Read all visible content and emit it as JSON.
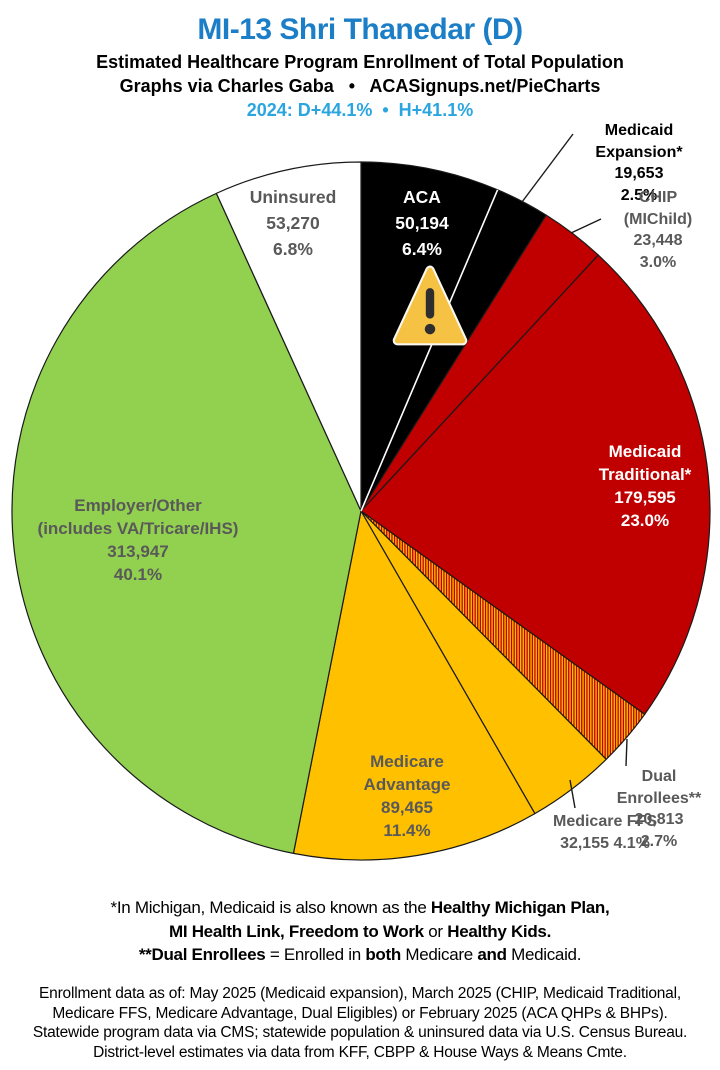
{
  "header": {
    "title": "MI-13 Shri Thanedar (D)",
    "title_color": "#1b7ec6",
    "subtitle": "Estimated Healthcare Program Enrollment of Total Population",
    "credit": "Graphs via Charles Gaba   •   ACASignups.net/PieCharts",
    "partisan": "2024: D+44.1%  •  H+41.1%",
    "partisan_color": "#2aa5e0"
  },
  "chart_data": {
    "type": "pie",
    "title": "Estimated Healthcare Program Enrollment of Total Population",
    "start": "12-oclock",
    "direction": "clockwise",
    "hatch_colors": [
      "#c00000",
      "#ffc000"
    ],
    "outline_color": "#1a1a1a",
    "label_gray": "#595959",
    "segments": [
      {
        "label": "ACA",
        "value": "50,194",
        "value_num": 50194,
        "pct": "6.4%",
        "share": 6.4,
        "color": "#000000",
        "text_color": "#ffffff",
        "divider_after": "#ffffff"
      },
      {
        "label": "Medicaid Expansion*",
        "value": "19,653",
        "value_num": 19653,
        "pct": "2.5%",
        "share": 2.5,
        "color": "#000000",
        "text_color": "#000000",
        "callout": true
      },
      {
        "label": "CHIP (MIChild)",
        "value": "23,448",
        "value_num": 23448,
        "pct": "3.0%",
        "share": 3.0,
        "color": "#c00000",
        "text_color": "#595959",
        "callout": true
      },
      {
        "label": "Medicaid\nTraditional*",
        "value": "179,595",
        "value_num": 179595,
        "pct": "23.0%",
        "share": 23.0,
        "color": "#c00000",
        "text_color": "#ffffff"
      },
      {
        "label": "Dual Enrollees**",
        "value": "20,813",
        "value_num": 20813,
        "pct": "2.7%",
        "share": 2.7,
        "color": "hatch",
        "text_color": "#595959",
        "callout": true
      },
      {
        "label": "Medicare FFS",
        "value": "32,155",
        "value_num": 32155,
        "pct": "4.1%",
        "share": 4.1,
        "color": "#ffc000",
        "text_color": "#595959",
        "callout": true
      },
      {
        "label": "Medicare\nAdvantage",
        "value": "89,465",
        "value_num": 89465,
        "pct": "11.4%",
        "share": 11.4,
        "color": "#ffc000",
        "text_color": "#595959"
      },
      {
        "label": "Employer/Other\n(includes VA/Tricare/IHS)",
        "value": "313,947",
        "value_num": 313947,
        "pct": "40.1%",
        "share": 40.1,
        "color": "#92d050",
        "text_color": "#595959"
      },
      {
        "label": "Uninsured",
        "value": "53,270",
        "value_num": 53270,
        "pct": "6.8%",
        "share": 6.8,
        "color": "#ffffff",
        "text_color": "#595959"
      }
    ]
  },
  "warning_icon": {
    "name": "warning-icon",
    "triangle_color": "#f6c243",
    "border_color": "#fbf8ef",
    "glyph_color": "#2e2e2e"
  },
  "footnote1": {
    "lines": [
      [
        {
          "t": "*In Michigan, Medicaid is also known as the ",
          "b": false
        },
        {
          "t": "Healthy Michigan Plan,",
          "b": true
        }
      ],
      [
        {
          "t": "MI Health Link, Freedom to Work",
          "b": true
        },
        {
          "t": " or ",
          "b": false
        },
        {
          "t": "Healthy Kids.",
          "b": true
        }
      ],
      [
        {
          "t": "**Dual Enrollees",
          "b": true
        },
        {
          "t": " = Enrolled in ",
          "b": false
        },
        {
          "t": "both",
          "b": true
        },
        {
          "t": " Medicare ",
          "b": false
        },
        {
          "t": "and",
          "b": true
        },
        {
          "t": " Medicaid.",
          "b": false
        }
      ]
    ]
  },
  "footnote2": {
    "text": "Enrollment data as of: May 2025 (Medicaid expansion), March 2025 (CHIP, Medicaid Traditional,\nMedicare FFS, Medicare Advantage, Dual Eligibles) or February 2025 (ACA QHPs & BHPs).\nStatewide program data via CMS; statewide population & uninsured data via U.S. Census Bureau.\nDistrict-level estimates via data from KFF, CBPP & House Ways & Means Cmte."
  }
}
